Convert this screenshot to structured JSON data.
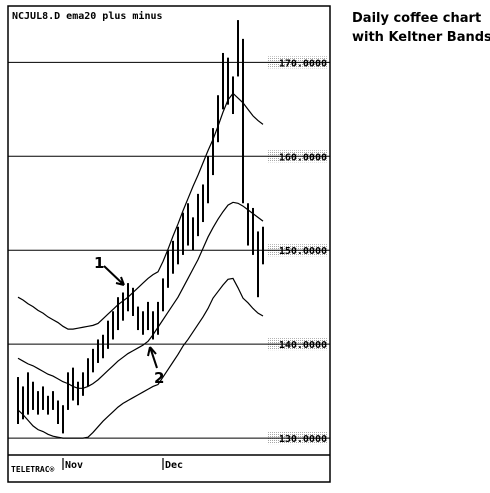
{
  "chart_data": {
    "type": "hlc",
    "title": "NCJUL8.D ema20 plus minus",
    "caption": [
      "Daily coffee chart",
      "with Keltner Bands"
    ],
    "source": "TELETRAC®",
    "annotations": [
      "1",
      "2"
    ],
    "categories": [
      null,
      null,
      null,
      null,
      null,
      null,
      null,
      null,
      null,
      "Nov",
      null,
      null,
      null,
      null,
      null,
      null,
      null,
      null,
      null,
      null,
      null,
      null,
      null,
      null,
      null,
      null,
      null,
      null,
      null,
      "Dec",
      null,
      null,
      null,
      null,
      null,
      null,
      null,
      null,
      null,
      null,
      null,
      null,
      null,
      null,
      null,
      null,
      null,
      null,
      null,
      null
    ],
    "high": [
      136.5,
      135.5,
      137,
      136,
      135,
      135.5,
      134.5,
      135,
      134,
      133.5,
      137,
      137.5,
      136,
      137,
      138.5,
      139.5,
      140.5,
      141,
      142.5,
      143.5,
      145,
      145.5,
      146.5,
      146,
      144,
      143.5,
      144.5,
      143.5,
      144.5,
      147,
      150,
      151,
      152.5,
      154,
      155,
      153.5,
      156,
      157,
      160,
      163,
      166.5,
      171,
      170.5,
      168.5,
      174.5,
      172.5,
      155,
      154.5,
      152,
      152.5
    ],
    "low": [
      131.5,
      132,
      132.5,
      133,
      132.5,
      133,
      132.5,
      133,
      131.5,
      130.5,
      133,
      134,
      133.5,
      134.5,
      135.5,
      137,
      138,
      138.5,
      139.5,
      140.5,
      141.5,
      142.5,
      143.5,
      143,
      141.5,
      141,
      141.5,
      140.5,
      141,
      143.5,
      146,
      147.5,
      148.5,
      149.5,
      150.5,
      150,
      151.5,
      153,
      155,
      158,
      161.5,
      165,
      165.5,
      164.5,
      168.5,
      155,
      150.5,
      149.5,
      145,
      148.5
    ],
    "series": [
      {
        "color": "#000000",
        "values": [
          145.0,
          144.7,
          144.3,
          144.0,
          143.6,
          143.3,
          142.9,
          142.6,
          142.3,
          141.9,
          141.6,
          141.6,
          141.7,
          141.8,
          141.9,
          142.0,
          142.2,
          142.7,
          143.2,
          143.7,
          144.2,
          144.6,
          145.0,
          145.5,
          146.0,
          146.5,
          147.0,
          147.4,
          147.7,
          148.8,
          150.1,
          151.5,
          152.8,
          154.2,
          155.5,
          156.8,
          158.0,
          159.3,
          160.6,
          161.8,
          163.2,
          164.7,
          166.0,
          166.7,
          166.2,
          165.7,
          165.0,
          164.3,
          163.8,
          163.4
        ]
      },
      {
        "color": "#000000",
        "values": [
          138.5,
          138.2,
          137.9,
          137.7,
          137.4,
          137.1,
          136.8,
          136.6,
          136.3,
          136.0,
          135.8,
          135.5,
          135.3,
          135.3,
          135.5,
          135.8,
          136.2,
          136.7,
          137.2,
          137.7,
          138.2,
          138.6,
          139.0,
          139.3,
          139.6,
          139.9,
          140.3,
          141.0,
          141.8,
          142.6,
          143.4,
          144.2,
          145.0,
          146.0,
          147.0,
          148.0,
          149.0,
          150.2,
          151.4,
          152.4,
          153.3,
          154.1,
          154.8,
          155.1,
          155.0,
          154.7,
          154.3,
          153.9,
          153.5,
          153.1
        ]
      },
      {
        "color": "#000000",
        "values": [
          133.0,
          132.5,
          131.9,
          131.3,
          130.9,
          130.7,
          130.4,
          130.2,
          130.1,
          130.0,
          130.0,
          130.0,
          130.0,
          130.0,
          130.1,
          130.6,
          131.2,
          131.8,
          132.3,
          132.8,
          133.3,
          133.7,
          134.0,
          134.3,
          134.6,
          134.9,
          135.2,
          135.5,
          135.7,
          136.5,
          137.3,
          138.1,
          138.9,
          139.8,
          140.5,
          141.3,
          142.1,
          142.9,
          143.8,
          144.9,
          145.6,
          146.3,
          146.9,
          147.0,
          146.0,
          144.9,
          144.4,
          143.8,
          143.3,
          143.0
        ]
      }
    ],
    "bar_color": "#000000",
    "ylim": [
      128.2,
      176
    ],
    "yticks": [
      {
        "value": 130,
        "label": "130.0000"
      },
      {
        "value": 140,
        "label": "140.0000"
      },
      {
        "value": 150,
        "label": "150.0000"
      },
      {
        "value": 160,
        "label": "160.0000"
      },
      {
        "value": 170,
        "label": "170.0000"
      }
    ],
    "grid": true
  }
}
